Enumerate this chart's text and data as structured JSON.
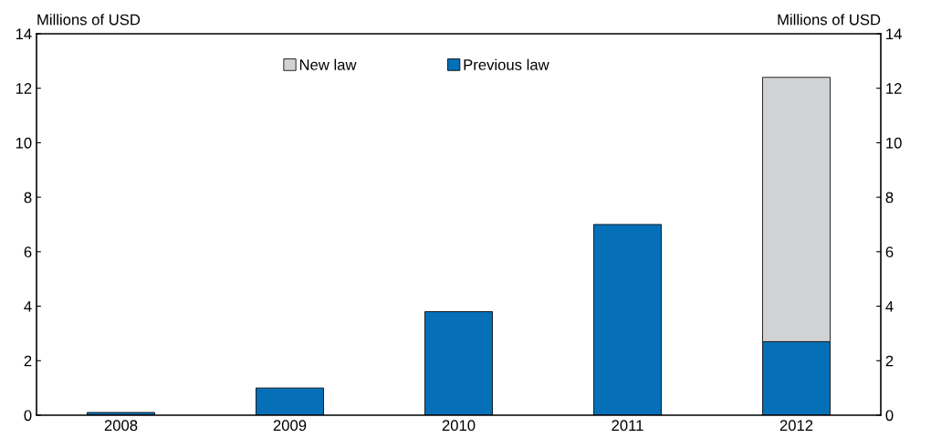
{
  "chart_data": {
    "type": "bar",
    "stacked": true,
    "ylabel": "Millions of USD",
    "y2label": "Millions of USD",
    "categories": [
      "2008",
      "2009",
      "2010",
      "2011",
      "2012"
    ],
    "series": [
      {
        "name": "Previous law",
        "color": "#0570b8",
        "values": [
          0.1,
          1.0,
          3.8,
          7.0,
          2.7
        ]
      },
      {
        "name": "New law",
        "color": "#d1d2d4",
        "values": [
          null,
          null,
          null,
          null,
          9.7
        ]
      }
    ],
    "ylim": [
      0,
      14
    ],
    "yticks": [
      0,
      2,
      4,
      6,
      8,
      10,
      12,
      14
    ],
    "y2lim": [
      0,
      14
    ],
    "y2ticks": [
      0,
      2,
      4,
      6,
      8,
      10,
      12,
      14
    ],
    "legend": "top",
    "grid": false
  }
}
